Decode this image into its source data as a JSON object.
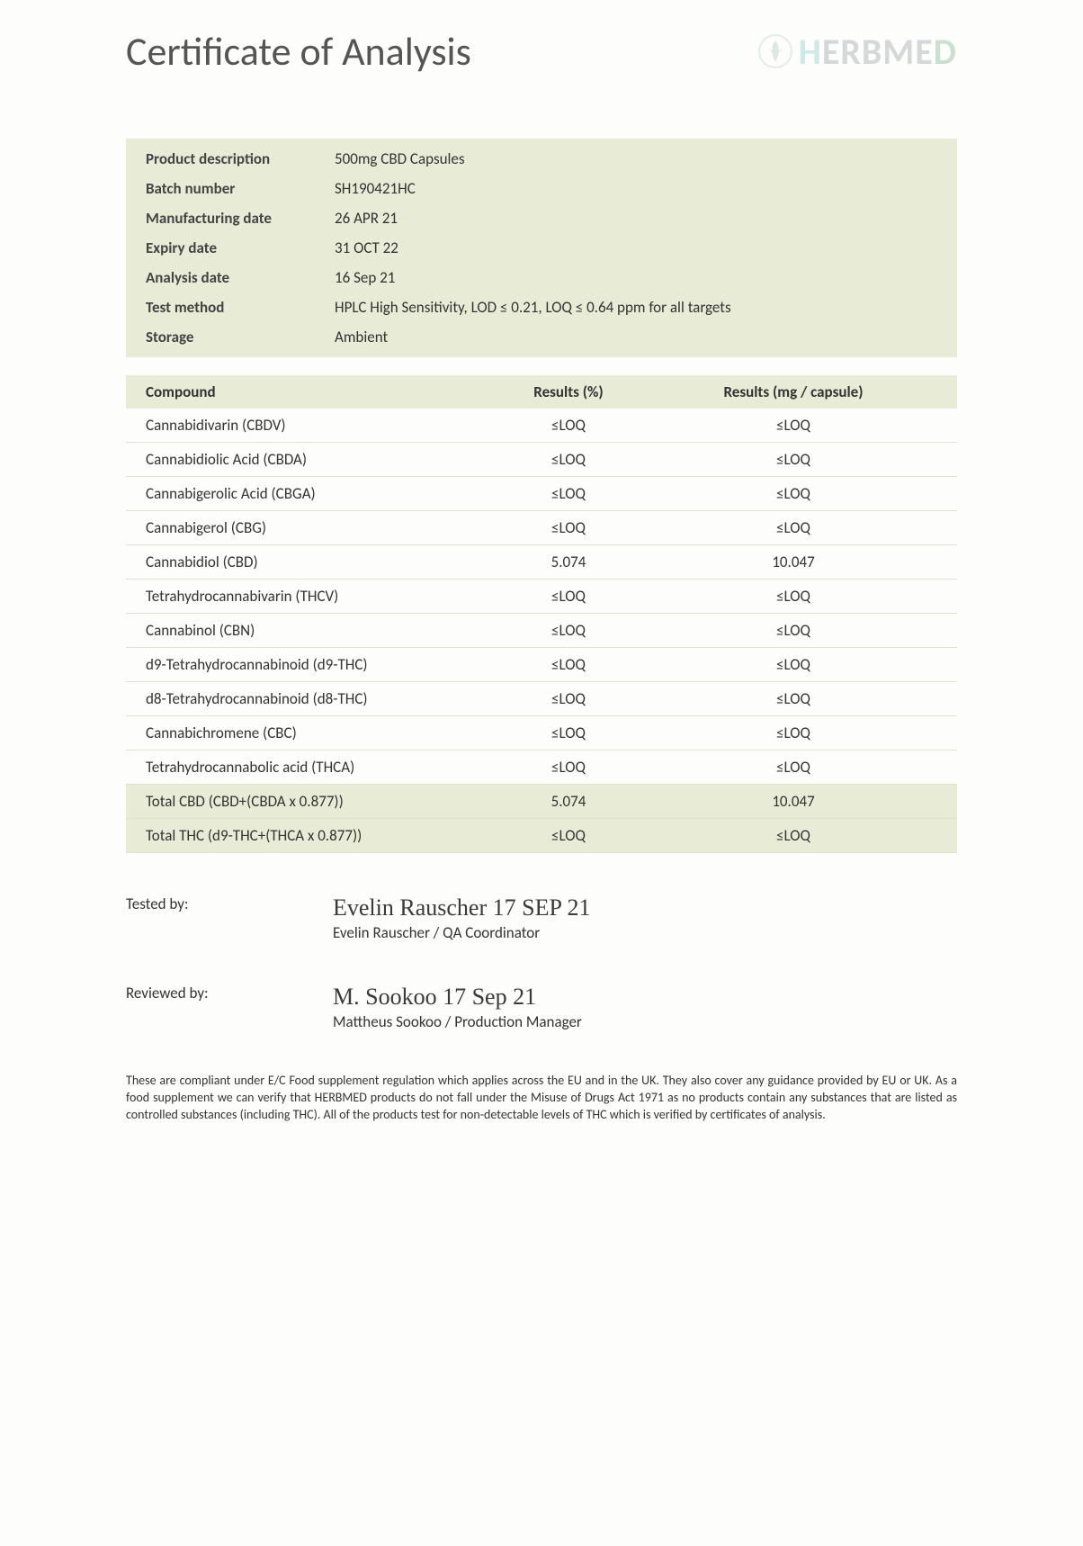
{
  "title": "Certificate of Analysis",
  "brand": {
    "h": "H",
    "rest": "ERBME",
    "d": "D"
  },
  "info": {
    "rows": [
      {
        "label": "Product description",
        "value": "500mg CBD Capsules"
      },
      {
        "label": "Batch number",
        "value": "SH190421HC"
      },
      {
        "label": "Manufacturing date",
        "value": "26 APR 21"
      },
      {
        "label": "Expiry date",
        "value": "31 OCT 22"
      },
      {
        "label": "Analysis date",
        "value": "16 Sep 21"
      },
      {
        "label": "Test method",
        "value": "HPLC High Sensitivity, LOD ≤ 0.21, LOQ ≤ 0.64 ppm for all targets"
      },
      {
        "label": "Storage",
        "value": "Ambient"
      }
    ]
  },
  "results": {
    "columns": [
      "Compound",
      "Results (%)",
      "Results (mg / capsule)"
    ],
    "rows": [
      {
        "compound": "Cannabidivarin (CBDV)",
        "pct": "≤LOQ",
        "mg": "≤LOQ",
        "shade": false
      },
      {
        "compound": "Cannabidiolic Acid (CBDA)",
        "pct": "≤LOQ",
        "mg": "≤LOQ",
        "shade": false
      },
      {
        "compound": "Cannabigerolic Acid (CBGA)",
        "pct": "≤LOQ",
        "mg": "≤LOQ",
        "shade": false
      },
      {
        "compound": "Cannabigerol (CBG)",
        "pct": "≤LOQ",
        "mg": "≤LOQ",
        "shade": false
      },
      {
        "compound": "Cannabidiol (CBD)",
        "pct": "5.074",
        "mg": "10.047",
        "shade": false
      },
      {
        "compound": "Tetrahydrocannabivarin (THCV)",
        "pct": "≤LOQ",
        "mg": "≤LOQ",
        "shade": false
      },
      {
        "compound": "Cannabinol (CBN)",
        "pct": "≤LOQ",
        "mg": "≤LOQ",
        "shade": false
      },
      {
        "compound": "d9-Tetrahydrocannabinoid (d9-THC)",
        "pct": "≤LOQ",
        "mg": "≤LOQ",
        "shade": false
      },
      {
        "compound": "d8-Tetrahydrocannabinoid (d8-THC)",
        "pct": "≤LOQ",
        "mg": "≤LOQ",
        "shade": false
      },
      {
        "compound": "Cannabichromene (CBC)",
        "pct": "≤LOQ",
        "mg": "≤LOQ",
        "shade": false
      },
      {
        "compound": "Tetrahydrocannabolic acid (THCA)",
        "pct": "≤LOQ",
        "mg": "≤LOQ",
        "shade": false
      },
      {
        "compound": "Total CBD (CBD+(CBDA x 0.877))",
        "pct": "5.074",
        "mg": "10.047",
        "shade": true
      },
      {
        "compound": "Total THC (d9-THC+(THCA x 0.877))",
        "pct": "≤LOQ",
        "mg": "≤LOQ",
        "shade": true
      }
    ]
  },
  "tested": {
    "label": "Tested by:",
    "signature": "Evelin Rauscher   17 SEP 21",
    "name": "Evelin Rauscher / QA Coordinator"
  },
  "reviewed": {
    "label": "Reviewed by:",
    "signature": "M. Sookoo   17 Sep 21",
    "name": "Mattheus Sookoo / Production Manager"
  },
  "disclaimer": "These are compliant under E/C Food supplement regulation which applies across the EU and in the UK. They also cover any guidance provided by EU or UK. As a food supplement we can verify that HERBMED products do not fall under the Misuse of Drugs Act 1971 as no products contain any substances that are listed as controlled substances (including THC). All of the products test for non-detectable levels of THC which is verified by certificates of analysis."
}
